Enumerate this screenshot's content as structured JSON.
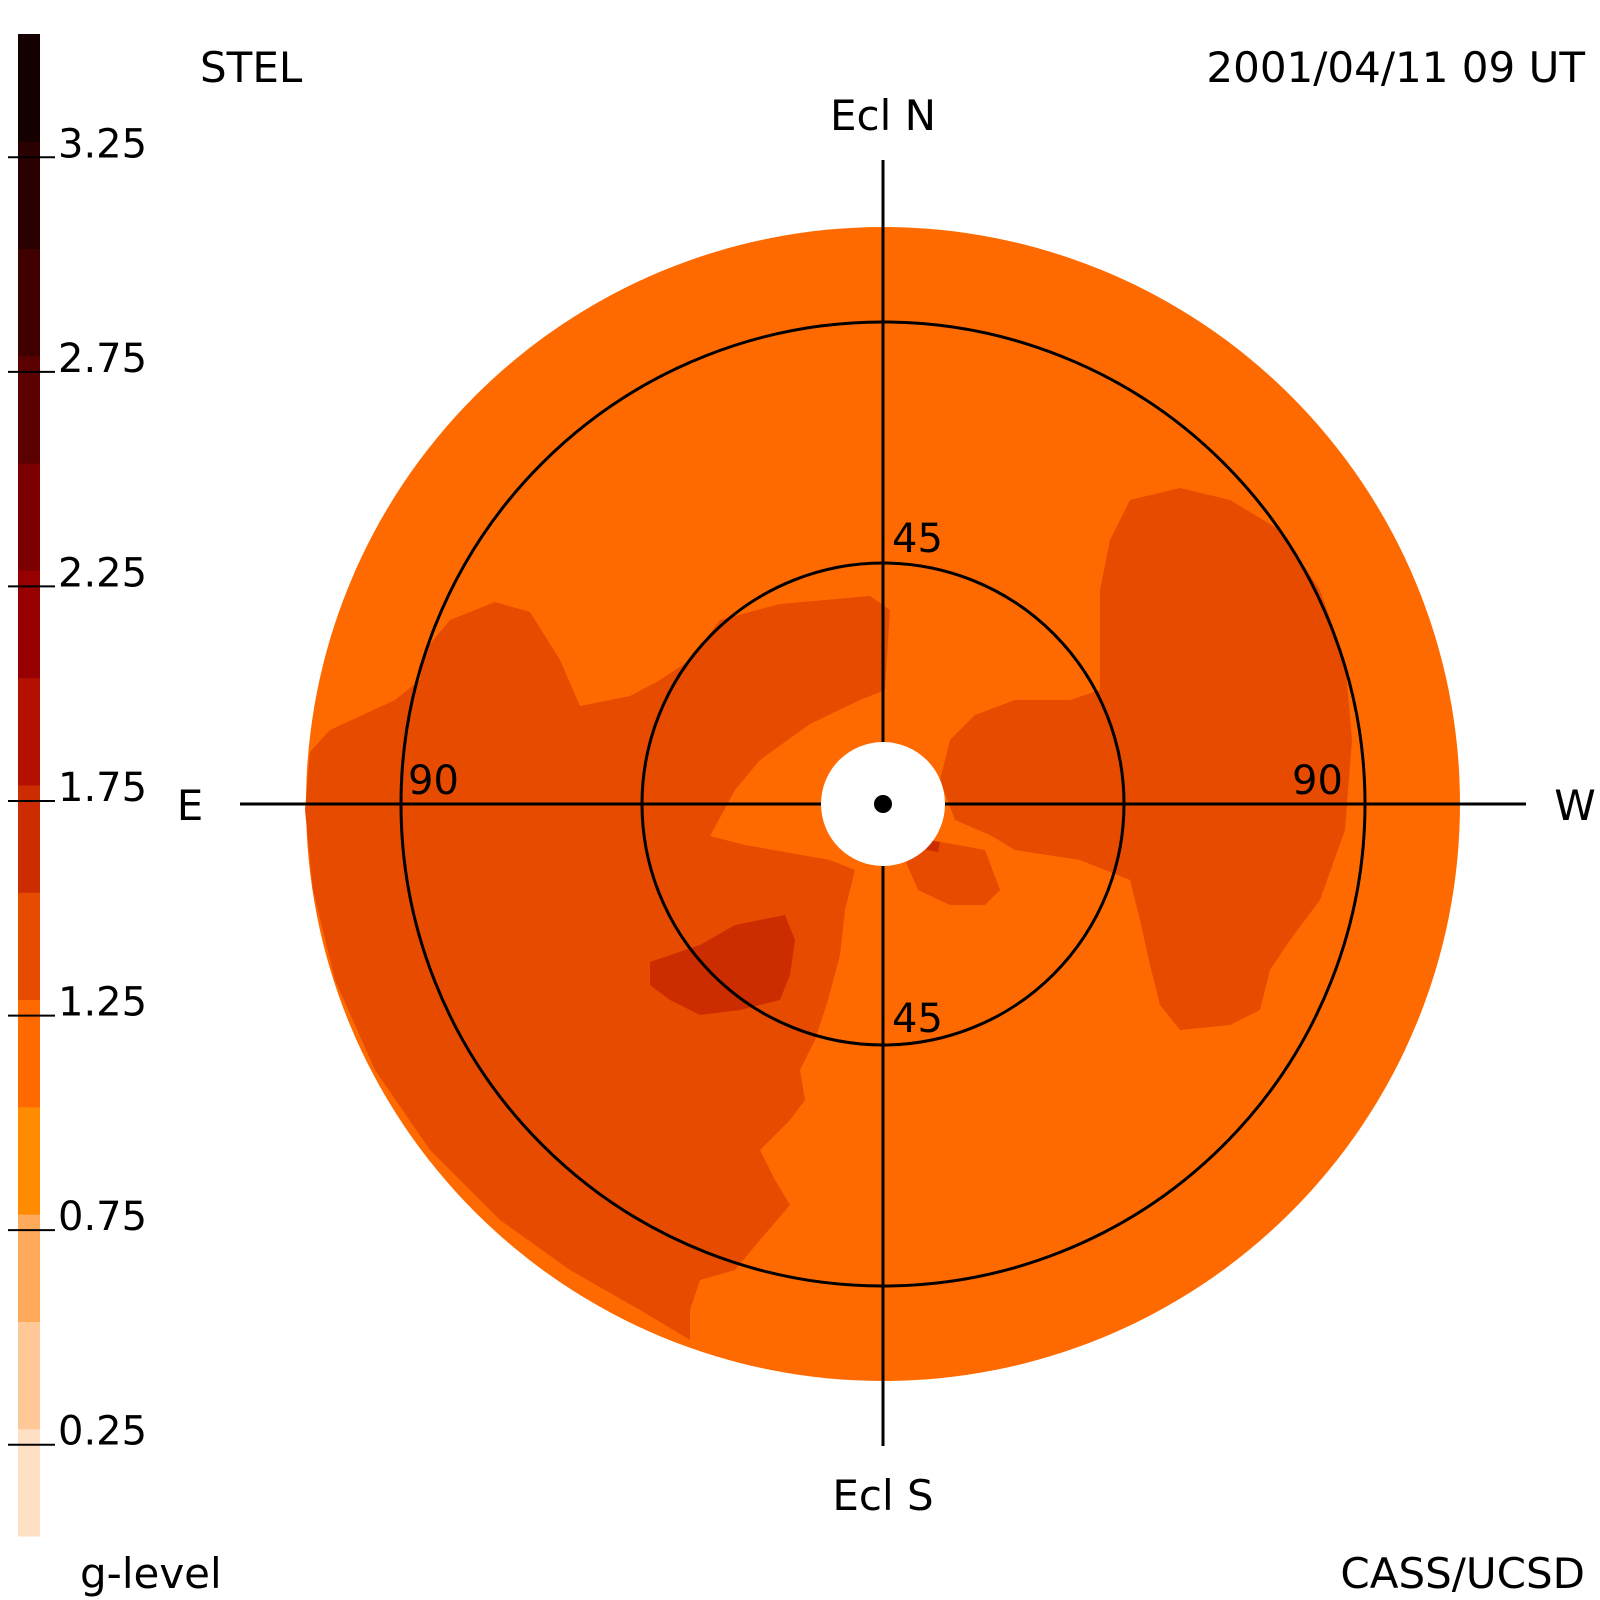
{
  "header": {
    "instrument": "STEL",
    "timestamp": "2001/04/11 09 UT",
    "credit": "CASS/UCSD"
  },
  "colorbar": {
    "label": "g-level",
    "range": [
      0,
      3.5
    ],
    "colors": [
      "#ffe0c4",
      "#ffc896",
      "#ffaa5a",
      "#ff8c00",
      "#ff6a00",
      "#e64b00",
      "#cc2d00",
      "#b41000",
      "#960000",
      "#7d0000",
      "#5a0000",
      "#410000",
      "#2a0000",
      "#140000"
    ],
    "tick_labels": [
      "0.25",
      "0.75",
      "1.25",
      "1.75",
      "2.25",
      "2.75",
      "3.25"
    ],
    "tick_values": [
      0.25,
      0.75,
      1.25,
      1.75,
      2.25,
      2.75,
      3.25
    ]
  },
  "directions": {
    "north": "Ecl N",
    "south": "Ecl S",
    "east": "E",
    "west": "W"
  },
  "rings": {
    "inner_top": "45",
    "inner_bottom": "45",
    "outer_left": "90",
    "outer_right": "90"
  },
  "chart_data": {
    "type": "heatmap",
    "projection": "polar sky map centered on the Sun, elongation rings",
    "ring_elongations_deg": [
      45,
      90
    ],
    "colors": {
      "background_level": "#ff6a00",
      "enhanced_level": "#e64b00",
      "peak_level": "#cc2d00",
      "occulter": "#ffffff",
      "lines": "#000000"
    },
    "regions": [
      {
        "name": "map-background",
        "value_range": [
          0.75,
          1.0
        ]
      },
      {
        "name": "east-enhancement",
        "value_range": [
          1.0,
          1.25
        ]
      },
      {
        "name": "west-enhancement",
        "value_range": [
          1.0,
          1.25
        ]
      },
      {
        "name": "inner-north-enhancement",
        "value_range": [
          1.0,
          1.25
        ]
      },
      {
        "name": "southeast-peak",
        "value_range": [
          1.25,
          1.5
        ]
      }
    ]
  }
}
